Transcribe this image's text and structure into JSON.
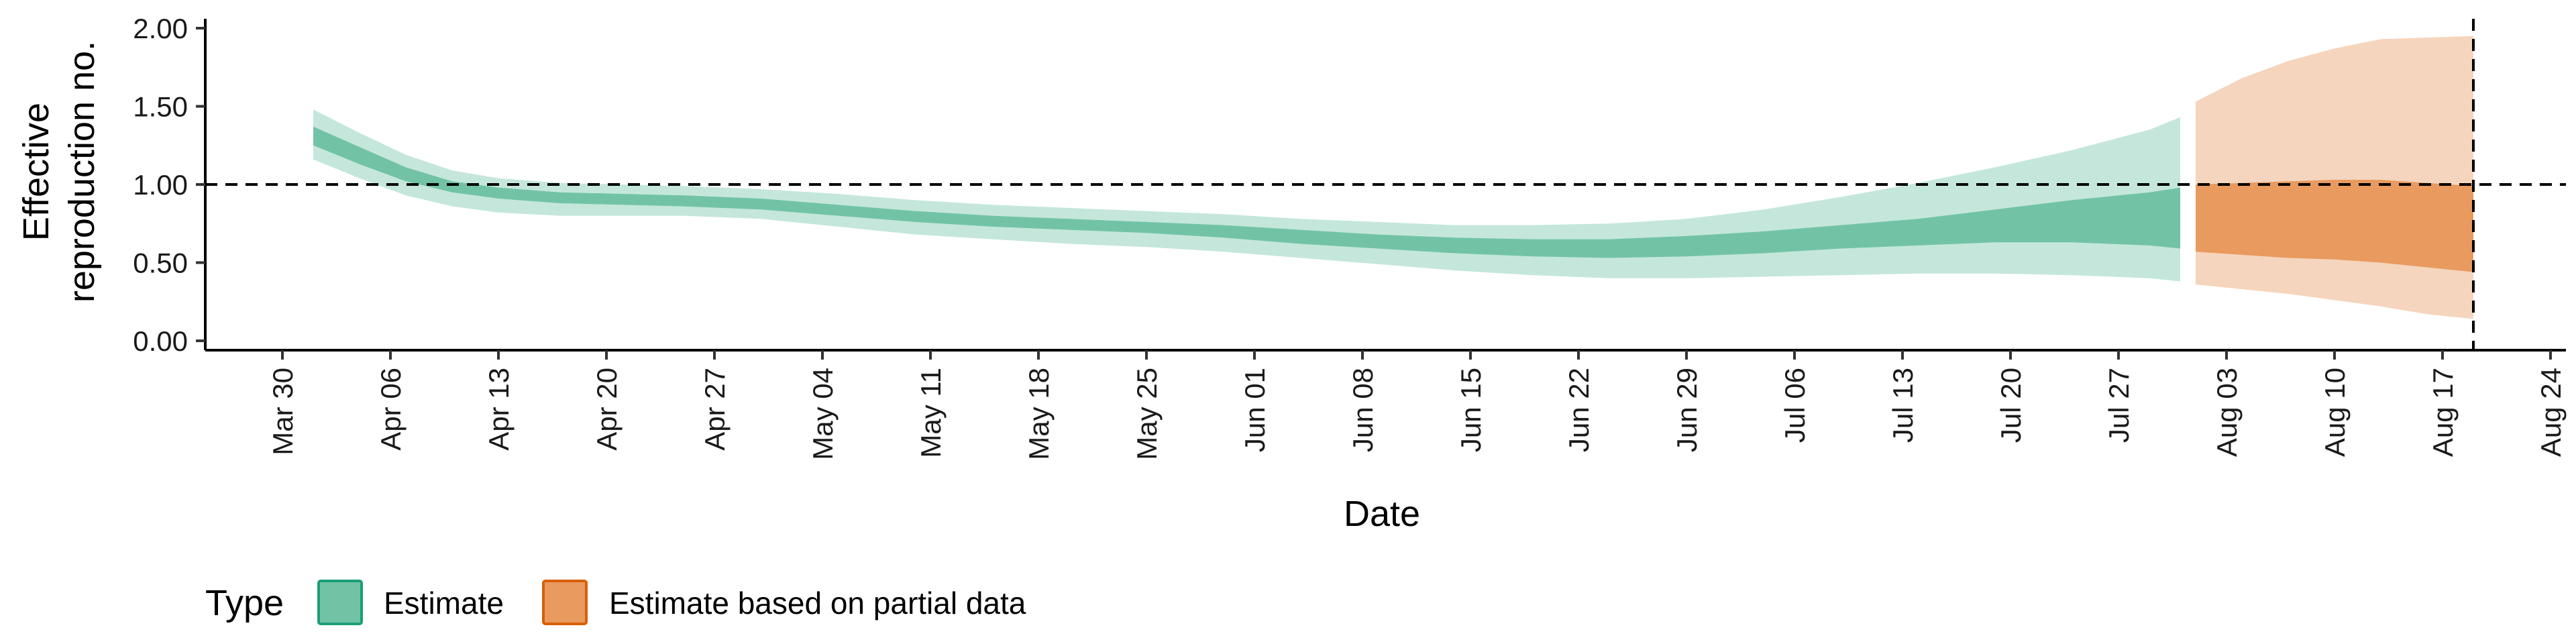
{
  "chart_data": {
    "type": "area",
    "xlabel": "Date",
    "ylabel_lines": [
      "Effective",
      "reproduction no."
    ],
    "y_ticks": [
      "0.00",
      "0.50",
      "1.00",
      "1.50",
      "2.00"
    ],
    "ylim": [
      -0.06,
      2.06
    ],
    "xlim": [
      "2020-03-25",
      "2020-08-25"
    ],
    "x_ticks": [
      {
        "date": "2020-03-30",
        "label": "Mar 30"
      },
      {
        "date": "2020-04-06",
        "label": "Apr 06"
      },
      {
        "date": "2020-04-13",
        "label": "Apr 13"
      },
      {
        "date": "2020-04-20",
        "label": "Apr 20"
      },
      {
        "date": "2020-04-27",
        "label": "Apr 27"
      },
      {
        "date": "2020-05-04",
        "label": "May 04"
      },
      {
        "date": "2020-05-11",
        "label": "May 11"
      },
      {
        "date": "2020-05-18",
        "label": "May 18"
      },
      {
        "date": "2020-05-25",
        "label": "May 25"
      },
      {
        "date": "2020-06-01",
        "label": "Jun 01"
      },
      {
        "date": "2020-06-08",
        "label": "Jun 08"
      },
      {
        "date": "2020-06-15",
        "label": "Jun 15"
      },
      {
        "date": "2020-06-22",
        "label": "Jun 22"
      },
      {
        "date": "2020-06-29",
        "label": "Jun 29"
      },
      {
        "date": "2020-07-06",
        "label": "Jul 06"
      },
      {
        "date": "2020-07-13",
        "label": "Jul 13"
      },
      {
        "date": "2020-07-20",
        "label": "Jul 20"
      },
      {
        "date": "2020-07-27",
        "label": "Jul 27"
      },
      {
        "date": "2020-08-03",
        "label": "Aug 03"
      },
      {
        "date": "2020-08-10",
        "label": "Aug 10"
      },
      {
        "date": "2020-08-17",
        "label": "Aug 17"
      },
      {
        "date": "2020-08-24",
        "label": "Aug 24"
      }
    ],
    "reference_hline": 1.0,
    "reference_vline": "2020-08-19",
    "legend": {
      "title": "Type",
      "position": "bottom-left",
      "entries": [
        {
          "label": "Estimate",
          "fill": "#72c3a5",
          "border": "#1b9e77"
        },
        {
          "label": "Estimate based on partial data",
          "fill": "#e89a5f",
          "border": "#d95f02"
        }
      ]
    },
    "series": [
      {
        "name": "Estimate",
        "color_outer": "#c5e7db",
        "color_inner": "#72c3a5",
        "points": [
          {
            "x": "2020-04-01",
            "lo90": 1.16,
            "lo50": 1.25,
            "hi50": 1.37,
            "hi90": 1.48
          },
          {
            "x": "2020-04-04",
            "lo90": 1.04,
            "lo50": 1.13,
            "hi50": 1.24,
            "hi90": 1.33
          },
          {
            "x": "2020-04-07",
            "lo90": 0.93,
            "lo50": 1.02,
            "hi50": 1.11,
            "hi90": 1.19
          },
          {
            "x": "2020-04-10",
            "lo90": 0.86,
            "lo50": 0.95,
            "hi50": 1.02,
            "hi90": 1.09
          },
          {
            "x": "2020-04-13",
            "lo90": 0.82,
            "lo50": 0.91,
            "hi50": 0.98,
            "hi90": 1.04
          },
          {
            "x": "2020-04-17",
            "lo90": 0.8,
            "lo50": 0.88,
            "hi50": 0.95,
            "hi90": 1.01
          },
          {
            "x": "2020-04-21",
            "lo90": 0.8,
            "lo50": 0.87,
            "hi50": 0.94,
            "hi90": 1.0
          },
          {
            "x": "2020-04-25",
            "lo90": 0.8,
            "lo50": 0.86,
            "hi50": 0.93,
            "hi90": 0.99
          },
          {
            "x": "2020-04-30",
            "lo90": 0.78,
            "lo50": 0.84,
            "hi50": 0.91,
            "hi90": 0.97
          },
          {
            "x": "2020-05-05",
            "lo90": 0.73,
            "lo50": 0.8,
            "hi50": 0.87,
            "hi90": 0.94
          },
          {
            "x": "2020-05-10",
            "lo90": 0.68,
            "lo50": 0.76,
            "hi50": 0.83,
            "hi90": 0.9
          },
          {
            "x": "2020-05-15",
            "lo90": 0.65,
            "lo50": 0.73,
            "hi50": 0.8,
            "hi90": 0.87
          },
          {
            "x": "2020-05-20",
            "lo90": 0.62,
            "lo50": 0.71,
            "hi50": 0.78,
            "hi90": 0.85
          },
          {
            "x": "2020-05-25",
            "lo90": 0.6,
            "lo50": 0.69,
            "hi50": 0.76,
            "hi90": 0.83
          },
          {
            "x": "2020-05-30",
            "lo90": 0.57,
            "lo50": 0.66,
            "hi50": 0.74,
            "hi90": 0.81
          },
          {
            "x": "2020-06-04",
            "lo90": 0.53,
            "lo50": 0.62,
            "hi50": 0.71,
            "hi90": 0.78
          },
          {
            "x": "2020-06-09",
            "lo90": 0.49,
            "lo50": 0.59,
            "hi50": 0.68,
            "hi90": 0.76
          },
          {
            "x": "2020-06-14",
            "lo90": 0.45,
            "lo50": 0.56,
            "hi50": 0.66,
            "hi90": 0.74
          },
          {
            "x": "2020-06-19",
            "lo90": 0.42,
            "lo50": 0.54,
            "hi50": 0.65,
            "hi90": 0.74
          },
          {
            "x": "2020-06-24",
            "lo90": 0.4,
            "lo50": 0.53,
            "hi50": 0.65,
            "hi90": 0.75
          },
          {
            "x": "2020-06-29",
            "lo90": 0.4,
            "lo50": 0.54,
            "hi50": 0.67,
            "hi90": 0.78
          },
          {
            "x": "2020-07-04",
            "lo90": 0.41,
            "lo50": 0.56,
            "hi50": 0.7,
            "hi90": 0.84
          },
          {
            "x": "2020-07-09",
            "lo90": 0.42,
            "lo50": 0.59,
            "hi50": 0.74,
            "hi90": 0.92
          },
          {
            "x": "2020-07-14",
            "lo90": 0.43,
            "lo50": 0.61,
            "hi50": 0.78,
            "hi90": 1.01
          },
          {
            "x": "2020-07-19",
            "lo90": 0.43,
            "lo50": 0.63,
            "hi50": 0.84,
            "hi90": 1.11
          },
          {
            "x": "2020-07-24",
            "lo90": 0.42,
            "lo50": 0.63,
            "hi50": 0.9,
            "hi90": 1.22
          },
          {
            "x": "2020-07-29",
            "lo90": 0.4,
            "lo50": 0.61,
            "hi50": 0.95,
            "hi90": 1.35
          },
          {
            "x": "2020-07-31",
            "lo90": 0.38,
            "lo50": 0.59,
            "hi50": 0.98,
            "hi90": 1.43
          }
        ]
      },
      {
        "name": "Estimate based on partial data",
        "color_outer": "#f5d5bd",
        "color_inner": "#e89a5f",
        "points": [
          {
            "x": "2020-08-01",
            "lo90": 0.36,
            "lo50": 0.57,
            "hi50": 1.0,
            "hi90": 1.53
          },
          {
            "x": "2020-08-04",
            "lo90": 0.33,
            "lo50": 0.55,
            "hi50": 1.01,
            "hi90": 1.68
          },
          {
            "x": "2020-08-07",
            "lo90": 0.3,
            "lo50": 0.53,
            "hi50": 1.02,
            "hi90": 1.79
          },
          {
            "x": "2020-08-10",
            "lo90": 0.26,
            "lo50": 0.52,
            "hi50": 1.03,
            "hi90": 1.87
          },
          {
            "x": "2020-08-13",
            "lo90": 0.22,
            "lo50": 0.5,
            "hi50": 1.03,
            "hi90": 1.93
          },
          {
            "x": "2020-08-16",
            "lo90": 0.17,
            "lo50": 0.47,
            "hi50": 1.01,
            "hi90": 1.94
          },
          {
            "x": "2020-08-19",
            "lo90": 0.14,
            "lo50": 0.44,
            "hi50": 0.99,
            "hi90": 1.95
          }
        ]
      }
    ]
  }
}
